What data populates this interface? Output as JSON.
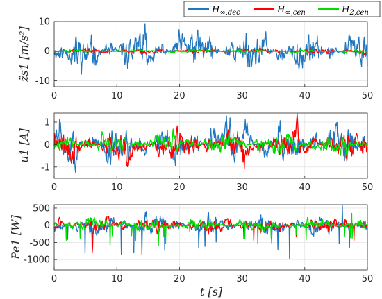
{
  "chart_data": [
    {
      "type": "line",
      "ylabel": "z̈s1 [m/s²]",
      "xlabel": "",
      "xlim": [
        0,
        50
      ],
      "ylim": [
        -12,
        10
      ],
      "xticks": [
        "0",
        "10",
        "20",
        "30",
        "40",
        "50"
      ],
      "yticks": [
        "10",
        "0",
        "-10"
      ],
      "ytick_values": [
        10,
        0,
        -10
      ],
      "grid": true,
      "series": [
        {
          "name": "H∞,dec",
          "color": "#1f77bf",
          "amplitude": 4.5,
          "seed": 11
        },
        {
          "name": "H∞,cen",
          "color": "#ff0000",
          "amplitude": 0.6,
          "seed": 23
        },
        {
          "name": "H2,cen",
          "color": "#00dd00",
          "amplitude": 0.35,
          "seed": 37
        }
      ]
    },
    {
      "type": "line",
      "ylabel": "u1 [A]",
      "xlabel": "",
      "xlim": [
        0,
        50
      ],
      "ylim": [
        -1.5,
        1.4
      ],
      "xticks": [
        "0",
        "10",
        "20",
        "30",
        "40",
        "50"
      ],
      "yticks": [
        "1",
        "0",
        "-1"
      ],
      "ytick_values": [
        1,
        0,
        -1
      ],
      "grid": true,
      "series": [
        {
          "name": "H∞,dec",
          "color": "#1f77bf",
          "amplitude": 0.6,
          "seed": 51
        },
        {
          "name": "H∞,cen",
          "color": "#ff0000",
          "amplitude": 0.45,
          "seed": 63
        },
        {
          "name": "H2,cen",
          "color": "#00dd00",
          "amplitude": 0.3,
          "seed": 77
        }
      ]
    },
    {
      "type": "line",
      "ylabel": "Pe1 [W]",
      "xlabel": "t [s]",
      "xlim": [
        0,
        50
      ],
      "ylim": [
        -1300,
        600
      ],
      "xticks": [
        "0",
        "10",
        "20",
        "30",
        "40",
        "50"
      ],
      "yticks": [
        "500",
        "0",
        "-500",
        "-1000"
      ],
      "ytick_values": [
        500,
        0,
        -500,
        -1000
      ],
      "grid": true,
      "series": [
        {
          "name": "H∞,dec",
          "color": "#1f77bf",
          "amplitude": 200,
          "seed": 91
        },
        {
          "name": "H∞,cen",
          "color": "#ff0000",
          "amplitude": 150,
          "seed": 103
        },
        {
          "name": "H2,cen",
          "color": "#00dd00",
          "amplitude": 120,
          "seed": 117
        }
      ]
    }
  ],
  "legend": {
    "placement": "top-right",
    "entries": [
      {
        "label_main": "H",
        "label_sub": "∞,dec",
        "color": "#1f77bf"
      },
      {
        "label_main": "H",
        "label_sub": "∞,cen",
        "color": "#ff0000"
      },
      {
        "label_main": "H",
        "label_sub": "2,cen",
        "color": "#00dd00"
      }
    ]
  }
}
